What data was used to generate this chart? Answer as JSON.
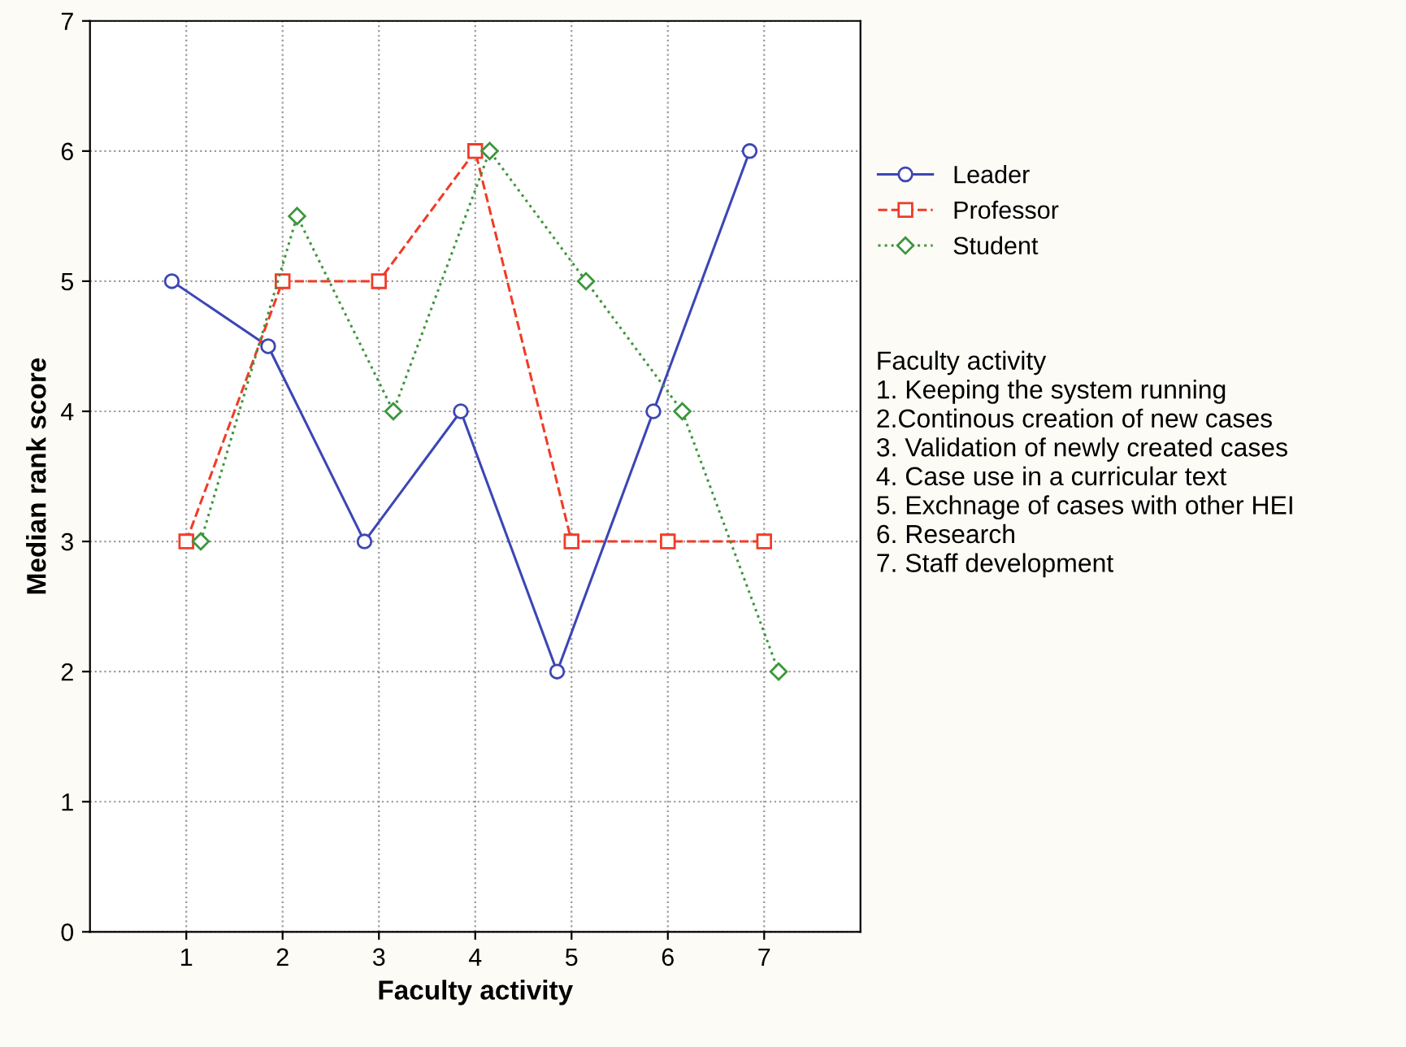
{
  "chart_data": {
    "type": "line",
    "xlabel": "Faculty activity",
    "ylabel": "Median rank score",
    "xlim": [
      0,
      8
    ],
    "xticks": [
      1,
      2,
      3,
      4,
      5,
      6,
      7
    ],
    "ylim": [
      0,
      7
    ],
    "yticks": [
      0,
      1,
      2,
      3,
      4,
      5,
      6,
      7
    ],
    "grid": true,
    "legend": "right",
    "series": [
      {
        "name": "Leader",
        "color": "#3c46b4",
        "marker": "circle",
        "line_style": "solid",
        "x": [
          0.85,
          1.85,
          2.85,
          3.85,
          4.85,
          5.85,
          6.85
        ],
        "values": [
          5,
          4.5,
          3,
          4,
          2,
          4,
          6
        ]
      },
      {
        "name": "Professor",
        "color": "#f03c28",
        "marker": "square",
        "line_style": "dashed",
        "x": [
          1,
          2,
          3,
          4,
          5,
          6,
          7
        ],
        "values": [
          3,
          5,
          5,
          6,
          3,
          3,
          3
        ]
      },
      {
        "name": "Student",
        "color": "#3c963c",
        "marker": "diamond",
        "line_style": "dotted",
        "x": [
          1.15,
          2.15,
          3.15,
          4.15,
          5.15,
          6.15,
          7.15
        ],
        "values": [
          3,
          5.5,
          4,
          6,
          5,
          4,
          2
        ]
      }
    ],
    "annotations": [
      "Faculty activity\n1. Keeping the system running\n2.Continous creation of new cases\n3. Validation of newly created cases\n4. Case use in a curricular text\n5. Exchnage of cases with other HEI\n6. Research\n7. Staff development"
    ]
  }
}
